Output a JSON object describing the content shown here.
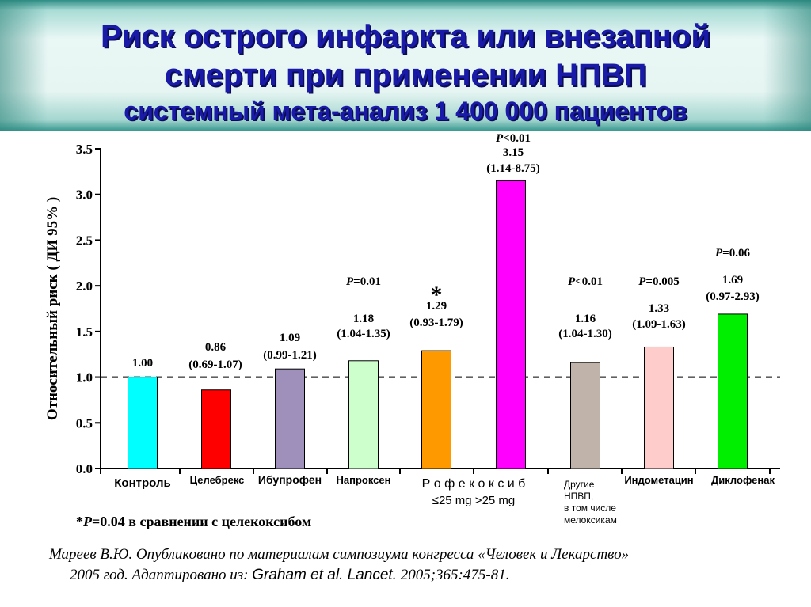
{
  "title": {
    "line1": "Риск острого инфаркта или внезапной",
    "line2": "смерти при применении НПВП",
    "line3": "системный мета-анализ 1 400 000 пациентов"
  },
  "chart_data": {
    "type": "bar",
    "ylabel": "Относительный риск ( ДИ 95% )",
    "ylim": [
      0,
      3.5
    ],
    "yticks": [
      "0.0",
      "0.5",
      "1.0",
      "1.5",
      "2.0",
      "2.5",
      "3.0",
      "3.5"
    ],
    "reference_line": 1.0,
    "bars": [
      {
        "category": "Контроль",
        "value": 1.0,
        "label": "1.00",
        "ci": "",
        "p": "",
        "color": "#00ffff"
      },
      {
        "category": "Целебрекс",
        "value": 0.86,
        "label": "0.86",
        "ci": "(0.69-1.07)",
        "p": "",
        "color": "#ff0000"
      },
      {
        "category": "Ибупрофен",
        "value": 1.09,
        "label": "1.09",
        "ci": "(0.99-1.21)",
        "p": "",
        "color": "#9e8fbb"
      },
      {
        "category": "Напроксен",
        "value": 1.18,
        "label": "1.18",
        "ci": "(1.04-1.35)",
        "p": "P=0.01",
        "color": "#ccffcc"
      },
      {
        "category": "≤25 mg",
        "value": 1.29,
        "label": "1.29",
        "ci": "(0.93-1.79)",
        "p": "",
        "star": "*",
        "color": "#ff9900"
      },
      {
        "category": ">25 mg",
        "value": 3.15,
        "label": "3.15",
        "ci": "(1.14-8.75)",
        "p": "P<0.01",
        "color": "#ff00ff"
      },
      {
        "category": "Другие НПВП, в том числе мелоксикам",
        "value": 1.16,
        "label": "1.16",
        "ci": "(1.04-1.30)",
        "p": "P<0.01",
        "color": "#c0b4aa"
      },
      {
        "category": "Индометацин",
        "value": 1.33,
        "label": "1.33",
        "ci": "(1.09-1.63)",
        "p": "P=0.005",
        "color": "#ffcccc"
      },
      {
        "category": "Диклофенак",
        "value": 1.69,
        "label": "1.69",
        "ci": "(0.97-2.93)",
        "p": "P=0.06",
        "color": "#00ee00"
      }
    ],
    "group_label": "Р о ф е к о к с и б",
    "group_sublabel": "≤25 mg >25 mg",
    "other_label_lines": [
      "Другие",
      "НПВП,",
      "в том числе",
      "мелоксикам"
    ]
  },
  "footnote": {
    "star": "*",
    "p": "P",
    "rest": "=0.04  в сравнении с целекоксибом"
  },
  "source": {
    "line1": "Мареев В.Ю. Опубликовано по материалам симпозиума конгресса «Человек и Лекарство»",
    "line2a": "2005 год.  Адаптировано из:  ",
    "line2b": "Graham et al. Lancet.",
    "line2c": " 2005;365:475-81."
  }
}
